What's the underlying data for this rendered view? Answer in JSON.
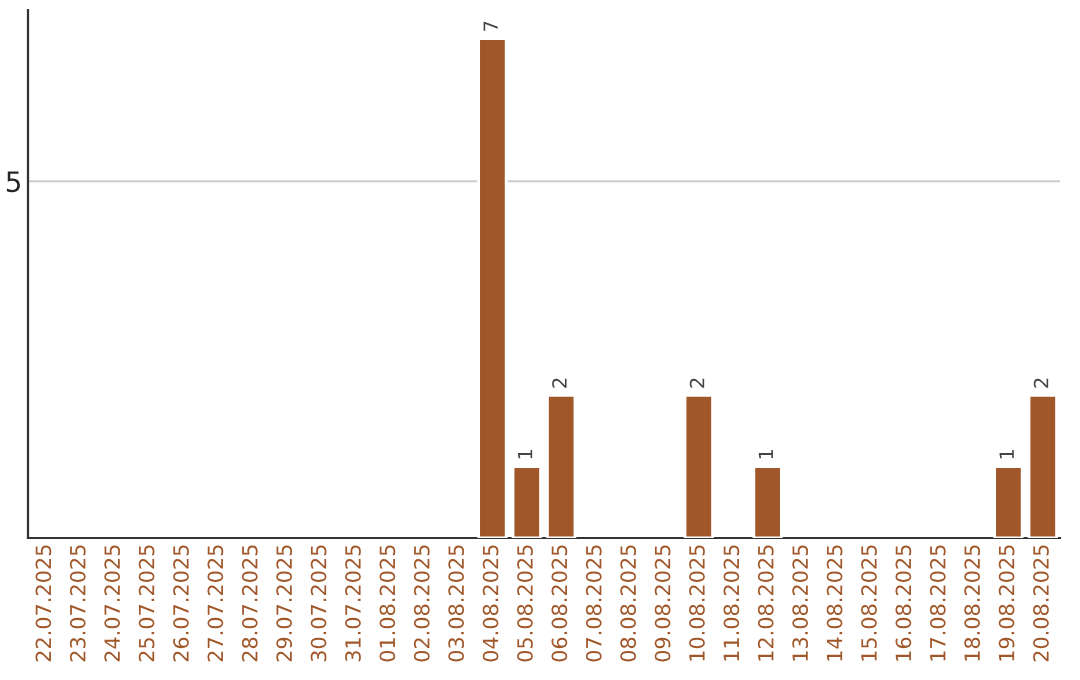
{
  "chart_data": {
    "type": "bar",
    "categories": [
      "22.07.2025",
      "23.07.2025",
      "24.07.2025",
      "25.07.2025",
      "26.07.2025",
      "27.07.2025",
      "28.07.2025",
      "29.07.2025",
      "30.07.2025",
      "31.07.2025",
      "01.08.2025",
      "02.08.2025",
      "03.08.2025",
      "04.08.2025",
      "05.08.2025",
      "06.08.2025",
      "07.08.2025",
      "08.08.2025",
      "09.08.2025",
      "10.08.2025",
      "11.08.2025",
      "12.08.2025",
      "13.08.2025",
      "14.08.2025",
      "15.08.2025",
      "16.08.2025",
      "17.08.2025",
      "18.08.2025",
      "19.08.2025",
      "20.08.2025"
    ],
    "values": [
      null,
      null,
      null,
      null,
      null,
      null,
      null,
      null,
      null,
      null,
      null,
      null,
      null,
      7,
      1,
      2,
      null,
      null,
      null,
      2,
      null,
      1,
      null,
      null,
      null,
      null,
      null,
      null,
      1,
      2
    ],
    "data_labels": true,
    "color": "#a0572a",
    "ylim": [
      0,
      7.4
    ],
    "yticks": [
      5
    ],
    "grid": "y"
  }
}
